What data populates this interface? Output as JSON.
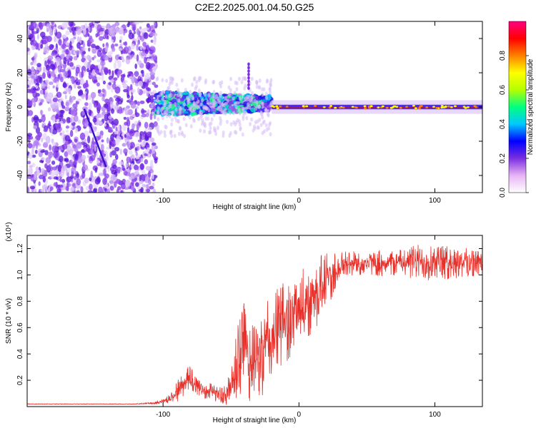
{
  "figure": {
    "title": "C2E2.2025.001.04.50.G25"
  },
  "chart_data": [
    {
      "type": "heatmap",
      "xlabel": "Height of straight line (km)",
      "ylabel": "Frequency (Hz)",
      "xlim": [
        -200,
        135
      ],
      "ylim": [
        -50,
        50
      ],
      "xticks": [
        -100,
        0,
        100
      ],
      "yticks": [
        -40,
        -20,
        0,
        20,
        40
      ],
      "colorbar": {
        "label": "Normalized spectral amplitude",
        "range": [
          0,
          1
        ],
        "ticks": [
          "0.0",
          "0.2",
          "0.4",
          "0.6",
          "0.8"
        ],
        "colors": [
          "#ffffff",
          "#e8b4f5",
          "#7b2fe0",
          "#0000ff",
          "#00c8ff",
          "#00ff80",
          "#b4ff00",
          "#ffff00",
          "#ff8000",
          "#ff0000",
          "#ff0080"
        ]
      },
      "regions": [
        {
          "x_range": [
            -200,
            -105
          ],
          "freq_range": [
            -50,
            50
          ],
          "amplitude": "low",
          "description": "broadband noise"
        },
        {
          "x_range": [
            -105,
            -20
          ],
          "freq_range": [
            -5,
            10
          ],
          "amplitude": "medium",
          "description": "spread signal around 0 Hz"
        },
        {
          "x_range": [
            -20,
            135
          ],
          "freq_range": [
            -2,
            2
          ],
          "amplitude": "high",
          "description": "narrow tone near 0 Hz"
        }
      ],
      "features": [
        {
          "from": [
            -158,
            -1
          ],
          "to": [
            -142,
            -35
          ],
          "description": "diagonal streak"
        },
        {
          "x": -37,
          "freq_range": [
            11,
            25
          ],
          "description": "vertical trace"
        }
      ]
    },
    {
      "type": "line",
      "xlabel": "Height of straight line (km)",
      "ylabel": "SNR (10 * v/v)",
      "y_multiplier": "(x10⁴)",
      "xlim": [
        -200,
        135
      ],
      "ylim": [
        0,
        1.3
      ],
      "xticks": [
        -100,
        0,
        100
      ],
      "yticks": [
        0.2,
        0.4,
        0.6,
        0.8,
        1.0,
        1.2
      ],
      "ytick_labels": [
        "0.2",
        "0.4",
        "0.6",
        "0.8",
        "1.0",
        "1.2"
      ],
      "series": [
        {
          "color": "#e8302a",
          "x": [
            -200,
            -180,
            -160,
            -140,
            -120,
            -105,
            -95,
            -90,
            -85,
            -80,
            -75,
            -70,
            -65,
            -60,
            -55,
            -50,
            -45,
            -42,
            -40,
            -38,
            -35,
            -30,
            -25,
            -20,
            -15,
            -10,
            -5,
            0,
            5,
            10,
            15,
            20,
            25,
            30,
            40,
            50,
            60,
            70,
            80,
            90,
            100,
            110,
            120,
            135
          ],
          "y": [
            0.02,
            0.02,
            0.02,
            0.02,
            0.02,
            0.03,
            0.06,
            0.12,
            0.18,
            0.22,
            0.17,
            0.12,
            0.13,
            0.1,
            0.09,
            0.15,
            0.35,
            0.45,
            0.5,
            0.42,
            0.36,
            0.38,
            0.45,
            0.55,
            0.62,
            0.68,
            0.7,
            0.74,
            0.82,
            0.85,
            0.92,
            0.98,
            1.02,
            1.07,
            1.1,
            1.09,
            1.1,
            1.1,
            1.11,
            1.11,
            1.12,
            1.1,
            1.11,
            1.1
          ],
          "noise_envelope": [
            0.0,
            0.0,
            0.0,
            0.0,
            0.0,
            0.01,
            0.03,
            0.08,
            0.1,
            0.12,
            0.08,
            0.06,
            0.06,
            0.06,
            0.07,
            0.15,
            0.3,
            0.35,
            0.4,
            0.35,
            0.3,
            0.28,
            0.35,
            0.35,
            0.33,
            0.32,
            0.3,
            0.28,
            0.3,
            0.28,
            0.25,
            0.22,
            0.18,
            0.12,
            0.1,
            0.08,
            0.1,
            0.1,
            0.12,
            0.14,
            0.14,
            0.13,
            0.12,
            0.1
          ]
        }
      ]
    }
  ]
}
